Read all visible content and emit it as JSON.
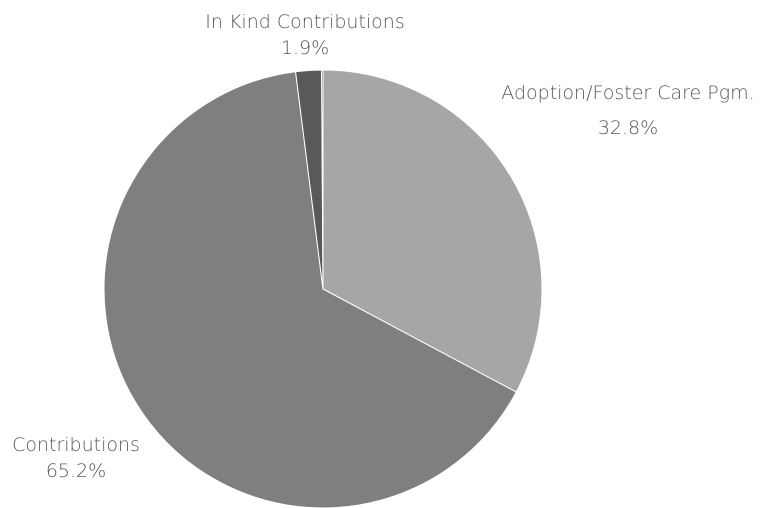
{
  "chart_data": {
    "type": "pie",
    "title": "",
    "slices": [
      {
        "label": "Adoption/Foster Care Pgm.",
        "value": 32.8,
        "value_label": "32.8%",
        "color": "#a6a6a6"
      },
      {
        "label": "Contributions",
        "value": 65.2,
        "value_label": "65.2%",
        "color": "#7f7f7f"
      },
      {
        "label": "In Kind Contributions",
        "value": 1.9,
        "value_label": "1.9%",
        "color": "#595959"
      },
      {
        "label": "",
        "value": 0.1,
        "value_label": "",
        "color": "#3f3f3f"
      }
    ],
    "start_angle_deg": 0,
    "direction": "clockwise",
    "label_color": "#595959",
    "slice_border_color": "#ffffff",
    "legend": "none"
  }
}
